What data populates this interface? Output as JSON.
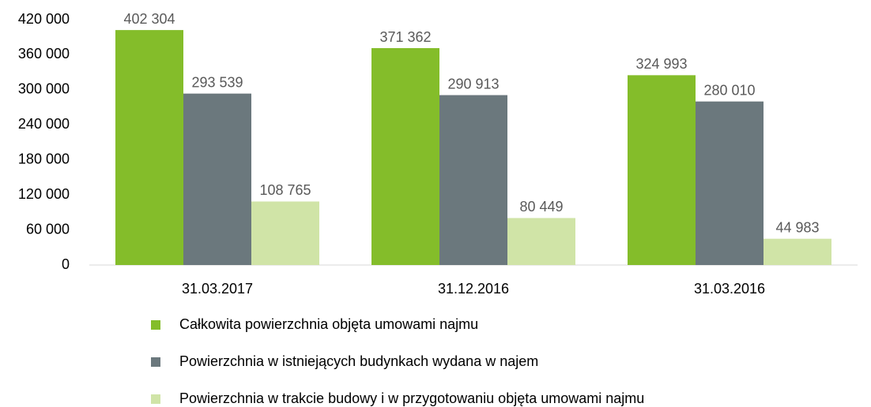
{
  "chart_data": {
    "type": "bar",
    "categories": [
      "31.03.2017",
      "31.12.2016",
      "31.03.2016"
    ],
    "series": [
      {
        "name": "Całkowita powierzchnia objęta umowami najmu",
        "color": "#84bd2a",
        "values": [
          402304,
          371362,
          324993
        ],
        "value_labels": [
          "402 304",
          "371 362",
          "324 993"
        ]
      },
      {
        "name": "Powierzchnia w istniejących budynkach wydana w najem",
        "color": "#6b787d",
        "values": [
          293539,
          290913,
          280010
        ],
        "value_labels": [
          "293 539",
          "290 913",
          "280 010"
        ]
      },
      {
        "name": "Powierzchnia w trakcie budowy i w przygotowaniu objęta umowami najmu",
        "color": "#d0e4a7",
        "values": [
          108765,
          80449,
          44983
        ],
        "value_labels": [
          "108 765",
          "80 449",
          "44 983"
        ]
      }
    ],
    "ylim": [
      0,
      420000
    ],
    "yticks": [
      0,
      {
        "value": 60000,
        "label": "60 000"
      },
      {
        "value": 120000,
        "label": "120 000"
      },
      {
        "value": 180000,
        "label": "180 000"
      },
      {
        "value": 240000,
        "label": "240 000"
      },
      {
        "value": 300000,
        "label": "300 000"
      },
      {
        "value": 360000,
        "label": "360 000"
      },
      {
        "value": 420000,
        "label": "420 000"
      }
    ],
    "grid": false,
    "legend": "bottom"
  }
}
